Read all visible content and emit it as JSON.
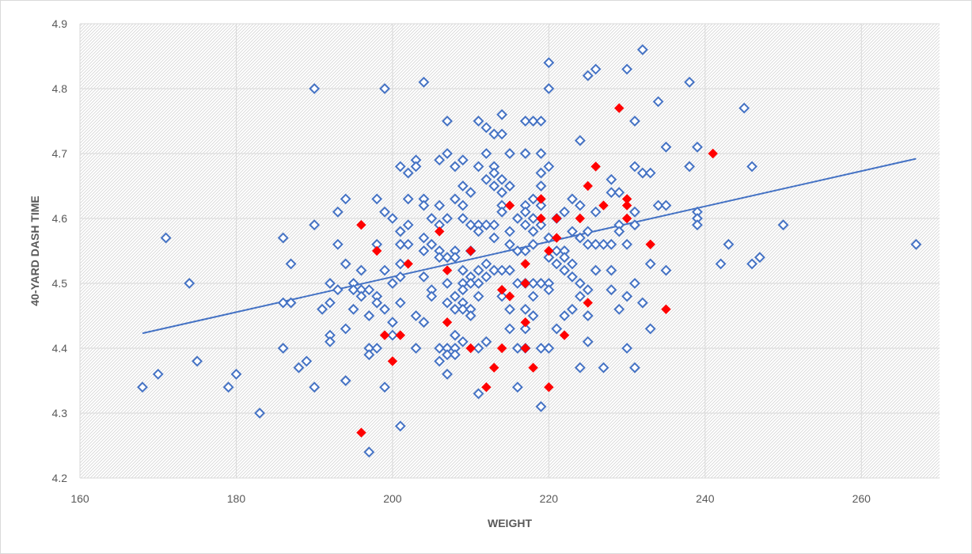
{
  "chart_data": {
    "type": "scatter",
    "title": "",
    "xlabel": "WEIGHT",
    "ylabel": "40-YARD DASH TIME",
    "xlim": [
      160,
      270
    ],
    "ylim": [
      4.2,
      4.9
    ],
    "x_ticks": [
      160,
      180,
      200,
      220,
      240,
      260
    ],
    "y_ticks": [
      4.2,
      4.3,
      4.4,
      4.5,
      4.6,
      4.7,
      4.8,
      4.9
    ],
    "grid": true,
    "legend": "none",
    "colors": {
      "hollow": "#4472c4",
      "highlight": "#ff0000",
      "trendline": "#4472c4",
      "grid": "#d9d9d9"
    },
    "series": [
      {
        "marker": "diamond-hollow",
        "points": [
          [
            168,
            4.34
          ],
          [
            170,
            4.36
          ],
          [
            171,
            4.57
          ],
          [
            174,
            4.5
          ],
          [
            175,
            4.38
          ],
          [
            179,
            4.34
          ],
          [
            180,
            4.36
          ],
          [
            183,
            4.3
          ],
          [
            186,
            4.57
          ],
          [
            186,
            4.47
          ],
          [
            186,
            4.4
          ],
          [
            187,
            4.53
          ],
          [
            187,
            4.47
          ],
          [
            188,
            4.37
          ],
          [
            189,
            4.38
          ],
          [
            190,
            4.8
          ],
          [
            190,
            4.59
          ],
          [
            190,
            4.34
          ],
          [
            191,
            4.46
          ],
          [
            192,
            4.5
          ],
          [
            192,
            4.47
          ],
          [
            192,
            4.42
          ],
          [
            192,
            4.41
          ],
          [
            193,
            4.61
          ],
          [
            193,
            4.56
          ],
          [
            193,
            4.49
          ],
          [
            194,
            4.63
          ],
          [
            194,
            4.53
          ],
          [
            194,
            4.43
          ],
          [
            194,
            4.35
          ],
          [
            195,
            4.5
          ],
          [
            195,
            4.49
          ],
          [
            195,
            4.46
          ],
          [
            196,
            4.52
          ],
          [
            196,
            4.49
          ],
          [
            196,
            4.48
          ],
          [
            197,
            4.49
          ],
          [
            197,
            4.45
          ],
          [
            197,
            4.4
          ],
          [
            197,
            4.39
          ],
          [
            197,
            4.24
          ],
          [
            198,
            4.63
          ],
          [
            198,
            4.56
          ],
          [
            198,
            4.48
          ],
          [
            198,
            4.47
          ],
          [
            198,
            4.4
          ],
          [
            199,
            4.8
          ],
          [
            199,
            4.61
          ],
          [
            199,
            4.52
          ],
          [
            199,
            4.46
          ],
          [
            199,
            4.34
          ],
          [
            200,
            4.6
          ],
          [
            200,
            4.5
          ],
          [
            200,
            4.44
          ],
          [
            200,
            4.42
          ],
          [
            201,
            4.68
          ],
          [
            201,
            4.58
          ],
          [
            201,
            4.56
          ],
          [
            201,
            4.53
          ],
          [
            201,
            4.51
          ],
          [
            201,
            4.47
          ],
          [
            201,
            4.28
          ],
          [
            202,
            4.67
          ],
          [
            202,
            4.63
          ],
          [
            202,
            4.59
          ],
          [
            202,
            4.56
          ],
          [
            203,
            4.69
          ],
          [
            203,
            4.68
          ],
          [
            203,
            4.45
          ],
          [
            203,
            4.4
          ],
          [
            204,
            4.81
          ],
          [
            204,
            4.63
          ],
          [
            204,
            4.62
          ],
          [
            204,
            4.57
          ],
          [
            204,
            4.55
          ],
          [
            204,
            4.51
          ],
          [
            204,
            4.44
          ],
          [
            205,
            4.6
          ],
          [
            205,
            4.56
          ],
          [
            205,
            4.49
          ],
          [
            205,
            4.48
          ],
          [
            206,
            4.69
          ],
          [
            206,
            4.62
          ],
          [
            206,
            4.59
          ],
          [
            206,
            4.55
          ],
          [
            206,
            4.54
          ],
          [
            206,
            4.4
          ],
          [
            206,
            4.38
          ],
          [
            207,
            4.75
          ],
          [
            207,
            4.7
          ],
          [
            207,
            4.6
          ],
          [
            207,
            4.54
          ],
          [
            207,
            4.5
          ],
          [
            207,
            4.47
          ],
          [
            207,
            4.4
          ],
          [
            207,
            4.39
          ],
          [
            207,
            4.36
          ],
          [
            208,
            4.68
          ],
          [
            208,
            4.63
          ],
          [
            208,
            4.55
          ],
          [
            208,
            4.54
          ],
          [
            208,
            4.48
          ],
          [
            208,
            4.46
          ],
          [
            208,
            4.42
          ],
          [
            208,
            4.4
          ],
          [
            208,
            4.39
          ],
          [
            209,
            4.69
          ],
          [
            209,
            4.65
          ],
          [
            209,
            4.62
          ],
          [
            209,
            4.6
          ],
          [
            209,
            4.52
          ],
          [
            209,
            4.5
          ],
          [
            209,
            4.49
          ],
          [
            209,
            4.47
          ],
          [
            209,
            4.46
          ],
          [
            209,
            4.41
          ],
          [
            210,
            4.64
          ],
          [
            210,
            4.59
          ],
          [
            210,
            4.55
          ],
          [
            210,
            4.51
          ],
          [
            210,
            4.5
          ],
          [
            210,
            4.46
          ],
          [
            210,
            4.45
          ],
          [
            211,
            4.75
          ],
          [
            211,
            4.68
          ],
          [
            211,
            4.59
          ],
          [
            211,
            4.58
          ],
          [
            211,
            4.52
          ],
          [
            211,
            4.5
          ],
          [
            211,
            4.48
          ],
          [
            211,
            4.4
          ],
          [
            211,
            4.33
          ],
          [
            212,
            4.74
          ],
          [
            212,
            4.7
          ],
          [
            212,
            4.66
          ],
          [
            212,
            4.59
          ],
          [
            212,
            4.53
          ],
          [
            212,
            4.51
          ],
          [
            212,
            4.41
          ],
          [
            213,
            4.73
          ],
          [
            213,
            4.68
          ],
          [
            213,
            4.67
          ],
          [
            213,
            4.65
          ],
          [
            213,
            4.59
          ],
          [
            213,
            4.57
          ],
          [
            213,
            4.52
          ],
          [
            214,
            4.76
          ],
          [
            214,
            4.73
          ],
          [
            214,
            4.66
          ],
          [
            214,
            4.64
          ],
          [
            214,
            4.62
          ],
          [
            214,
            4.61
          ],
          [
            214,
            4.52
          ],
          [
            214,
            4.48
          ],
          [
            215,
            4.7
          ],
          [
            215,
            4.65
          ],
          [
            215,
            4.58
          ],
          [
            215,
            4.56
          ],
          [
            215,
            4.52
          ],
          [
            215,
            4.46
          ],
          [
            215,
            4.43
          ],
          [
            216,
            4.6
          ],
          [
            216,
            4.55
          ],
          [
            216,
            4.5
          ],
          [
            216,
            4.4
          ],
          [
            216,
            4.34
          ],
          [
            217,
            4.75
          ],
          [
            217,
            4.7
          ],
          [
            217,
            4.62
          ],
          [
            217,
            4.61
          ],
          [
            217,
            4.59
          ],
          [
            217,
            4.55
          ],
          [
            217,
            4.5
          ],
          [
            217,
            4.46
          ],
          [
            217,
            4.43
          ],
          [
            217,
            4.4
          ],
          [
            218,
            4.75
          ],
          [
            218,
            4.63
          ],
          [
            218,
            4.6
          ],
          [
            218,
            4.58
          ],
          [
            218,
            4.56
          ],
          [
            218,
            4.5
          ],
          [
            218,
            4.48
          ],
          [
            218,
            4.45
          ],
          [
            219,
            4.75
          ],
          [
            219,
            4.7
          ],
          [
            219,
            4.67
          ],
          [
            219,
            4.65
          ],
          [
            219,
            4.62
          ],
          [
            219,
            4.59
          ],
          [
            219,
            4.5
          ],
          [
            219,
            4.4
          ],
          [
            219,
            4.31
          ],
          [
            220,
            4.84
          ],
          [
            220,
            4.8
          ],
          [
            220,
            4.68
          ],
          [
            220,
            4.57
          ],
          [
            220,
            4.54
          ],
          [
            220,
            4.5
          ],
          [
            220,
            4.49
          ],
          [
            220,
            4.4
          ],
          [
            221,
            4.6
          ],
          [
            221,
            4.55
          ],
          [
            221,
            4.53
          ],
          [
            221,
            4.43
          ],
          [
            222,
            4.61
          ],
          [
            222,
            4.55
          ],
          [
            222,
            4.54
          ],
          [
            222,
            4.52
          ],
          [
            222,
            4.45
          ],
          [
            223,
            4.63
          ],
          [
            223,
            4.58
          ],
          [
            223,
            4.53
          ],
          [
            223,
            4.51
          ],
          [
            223,
            4.46
          ],
          [
            224,
            4.72
          ],
          [
            224,
            4.62
          ],
          [
            224,
            4.57
          ],
          [
            224,
            4.5
          ],
          [
            224,
            4.48
          ],
          [
            224,
            4.37
          ],
          [
            225,
            4.82
          ],
          [
            225,
            4.58
          ],
          [
            225,
            4.56
          ],
          [
            225,
            4.49
          ],
          [
            225,
            4.45
          ],
          [
            225,
            4.41
          ],
          [
            226,
            4.83
          ],
          [
            226,
            4.61
          ],
          [
            226,
            4.56
          ],
          [
            226,
            4.52
          ],
          [
            227,
            4.56
          ],
          [
            227,
            4.37
          ],
          [
            228,
            4.66
          ],
          [
            228,
            4.64
          ],
          [
            228,
            4.56
          ],
          [
            228,
            4.52
          ],
          [
            228,
            4.49
          ],
          [
            229,
            4.64
          ],
          [
            229,
            4.59
          ],
          [
            229,
            4.58
          ],
          [
            229,
            4.46
          ],
          [
            230,
            4.83
          ],
          [
            230,
            4.56
          ],
          [
            230,
            4.48
          ],
          [
            230,
            4.4
          ],
          [
            231,
            4.75
          ],
          [
            231,
            4.68
          ],
          [
            231,
            4.61
          ],
          [
            231,
            4.59
          ],
          [
            231,
            4.5
          ],
          [
            231,
            4.37
          ],
          [
            232,
            4.86
          ],
          [
            232,
            4.67
          ],
          [
            232,
            4.47
          ],
          [
            233,
            4.67
          ],
          [
            233,
            4.53
          ],
          [
            233,
            4.43
          ],
          [
            234,
            4.78
          ],
          [
            234,
            4.62
          ],
          [
            235,
            4.71
          ],
          [
            235,
            4.62
          ],
          [
            235,
            4.52
          ],
          [
            238,
            4.81
          ],
          [
            238,
            4.68
          ],
          [
            239,
            4.71
          ],
          [
            239,
            4.61
          ],
          [
            239,
            4.6
          ],
          [
            239,
            4.59
          ],
          [
            242,
            4.53
          ],
          [
            243,
            4.56
          ],
          [
            245,
            4.77
          ],
          [
            246,
            4.68
          ],
          [
            246,
            4.53
          ],
          [
            247,
            4.54
          ],
          [
            250,
            4.59
          ],
          [
            267,
            4.56
          ]
        ]
      },
      {
        "marker": "diamond-filled",
        "points": [
          [
            196,
            4.59
          ],
          [
            196,
            4.27
          ],
          [
            198,
            4.55
          ],
          [
            199,
            4.42
          ],
          [
            200,
            4.38
          ],
          [
            201,
            4.42
          ],
          [
            202,
            4.53
          ],
          [
            206,
            4.58
          ],
          [
            207,
            4.52
          ],
          [
            207,
            4.44
          ],
          [
            210,
            4.55
          ],
          [
            210,
            4.4
          ],
          [
            212,
            4.34
          ],
          [
            213,
            4.37
          ],
          [
            214,
            4.49
          ],
          [
            214,
            4.4
          ],
          [
            215,
            4.62
          ],
          [
            215,
            4.48
          ],
          [
            217,
            4.53
          ],
          [
            217,
            4.5
          ],
          [
            217,
            4.44
          ],
          [
            217,
            4.4
          ],
          [
            218,
            4.37
          ],
          [
            219,
            4.63
          ],
          [
            219,
            4.6
          ],
          [
            220,
            4.55
          ],
          [
            220,
            4.34
          ],
          [
            221,
            4.6
          ],
          [
            221,
            4.57
          ],
          [
            222,
            4.42
          ],
          [
            224,
            4.6
          ],
          [
            225,
            4.65
          ],
          [
            225,
            4.47
          ],
          [
            226,
            4.68
          ],
          [
            227,
            4.62
          ],
          [
            229,
            4.77
          ],
          [
            230,
            4.63
          ],
          [
            230,
            4.62
          ],
          [
            230,
            4.6
          ],
          [
            233,
            4.56
          ],
          [
            235,
            4.46
          ],
          [
            241,
            4.7
          ]
        ]
      }
    ],
    "trendline": {
      "x": [
        168,
        267
      ],
      "y": [
        4.423,
        4.692
      ]
    }
  }
}
